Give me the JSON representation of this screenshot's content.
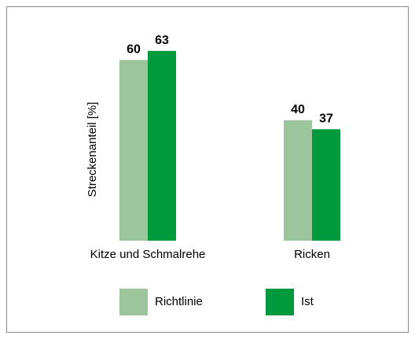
{
  "chart_data": {
    "type": "bar",
    "y_label": "Streckenanteil [%]",
    "categories": [
      "Kitze und Schmalrehe",
      "Ricken"
    ],
    "series": [
      {
        "name": "Richtlinie",
        "color": "#9dc59c",
        "values": [
          60,
          40
        ]
      },
      {
        "name": "Ist",
        "color": "#009a3d",
        "values": [
          63,
          37
        ]
      }
    ],
    "legend": "bottom"
  }
}
